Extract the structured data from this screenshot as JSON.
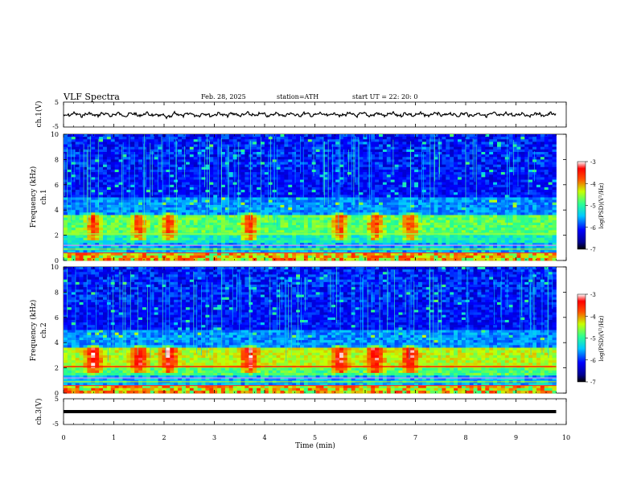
{
  "header": {
    "title": "VLF  Spectra",
    "date": "Feb. 28, 2025",
    "station": "station=ATH",
    "start": "start  UT  =    22: 20: 0"
  },
  "chart_data": [
    {
      "type": "line",
      "name": "ch1_waveform",
      "ylabel": "ch.1(V)",
      "yticks": [
        "5",
        "-5"
      ],
      "ylim": [
        -5,
        5
      ],
      "x_range_min": [
        0,
        9.8
      ],
      "description_level": 0
    },
    {
      "type": "heatmap",
      "name": "ch1_spectrogram",
      "ylabel": "ch.1 Frequency (kHz)",
      "yticks": [
        "0",
        "2",
        "4",
        "6",
        "8",
        "10"
      ],
      "ylim": [
        0,
        10
      ],
      "colorbar": {
        "label": "log(PSD)(V²/Hz)",
        "ticks": [
          "-3",
          "-4",
          "-5",
          "-6",
          "-7"
        ],
        "range": [
          -7,
          -3
        ]
      },
      "bursts_min": [
        0.6,
        1.5,
        2.1,
        3.7,
        5.5,
        6.2,
        6.9
      ]
    },
    {
      "type": "heatmap",
      "name": "ch2_spectrogram",
      "ylabel": "ch.2 Frequency (kHz)",
      "yticks": [
        "0",
        "2",
        "4",
        "6",
        "8",
        "10"
      ],
      "ylim": [
        0,
        10
      ],
      "colorbar": {
        "label": "log(PSD)(V²/Hz)",
        "ticks": [
          "-3",
          "-4",
          "-5",
          "-6",
          "-7"
        ],
        "range": [
          -7,
          -3
        ]
      },
      "bursts_min": [
        0.6,
        1.5,
        2.1,
        3.7,
        5.5,
        6.2,
        6.9
      ]
    },
    {
      "type": "line",
      "name": "ch3_waveform",
      "ylabel": "ch.3(V)",
      "yticks": [
        "5",
        "-5"
      ],
      "ylim": [
        -5,
        5
      ],
      "value_level": 0,
      "x_range_min": [
        0,
        9.8
      ]
    }
  ],
  "xaxis": {
    "label": "Time  (min)",
    "ticks": [
      "0",
      "1",
      "2",
      "3",
      "4",
      "5",
      "6",
      "7",
      "8",
      "9",
      "10"
    ],
    "range": [
      0,
      10
    ]
  }
}
